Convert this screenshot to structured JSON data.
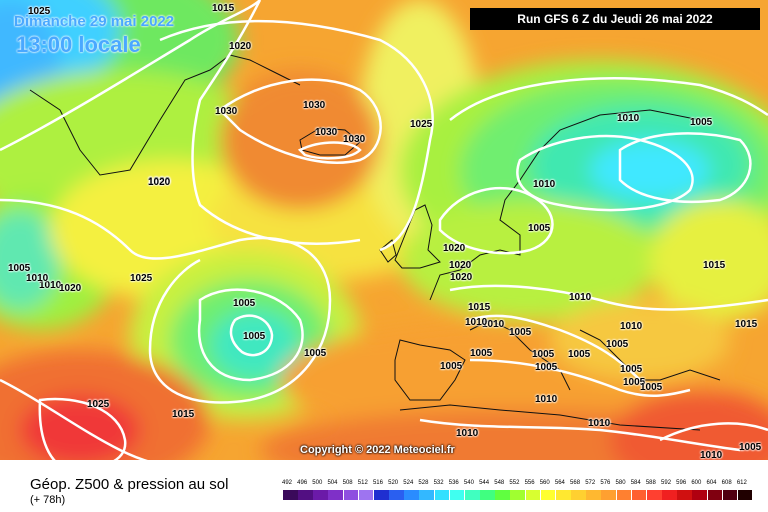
{
  "header": {
    "date": "Dimanche 29 mai 2022",
    "time": "13:00 locale",
    "run": "Run GFS 6 Z du Jeudi 26 mai 2022"
  },
  "copyright": "Copyright © 2022 Meteociel.fr",
  "footer": {
    "product": "Géop. Z500 & pression au sol",
    "lead": "(+ 78h)"
  },
  "pressure_labels": [
    "1015",
    "1025",
    "1020",
    "1020",
    "1030",
    "1030",
    "1030",
    "1030",
    "1025",
    "1010",
    "1005",
    "1020",
    "1010",
    "1005",
    "1025",
    "1005",
    "1005",
    "1010",
    "1020",
    "1020",
    "1020",
    "1010",
    "1020",
    "1005",
    "1005",
    "1010",
    "1015",
    "1015",
    "1010",
    "1005",
    "1005",
    "1005",
    "1005",
    "1005",
    "1005",
    "1005",
    "1005",
    "1010",
    "1010",
    "1005",
    "1005",
    "1025",
    "1015",
    "1010",
    "1010",
    "1010",
    "1005",
    "1010",
    "1015"
  ],
  "scale": {
    "ticks": [
      "492",
      "496",
      "500",
      "504",
      "508",
      "512",
      "516",
      "520",
      "524",
      "528",
      "532",
      "536",
      "540",
      "544",
      "548",
      "552",
      "556",
      "560",
      "564",
      "568",
      "572",
      "576",
      "580",
      "584",
      "588",
      "592",
      "596",
      "600",
      "604",
      "608",
      "612"
    ],
    "colors": [
      "#3a0a5a",
      "#520f82",
      "#6b1aa8",
      "#7f30c8",
      "#8f4fe0",
      "#9e74f0",
      "#1f2fd0",
      "#2a5ff0",
      "#2a8cff",
      "#33b8ff",
      "#33e0ff",
      "#40fff0",
      "#40ffc0",
      "#40ff80",
      "#60ff40",
      "#a0ff30",
      "#d8ff30",
      "#ffff30",
      "#ffe830",
      "#ffd030",
      "#ffb830",
      "#ffa030",
      "#ff8030",
      "#ff6030",
      "#ff4030",
      "#f02020",
      "#d01010",
      "#b00010",
      "#800010",
      "#500010",
      "#200000"
    ]
  },
  "colors": {
    "map_background": "#f6a531",
    "isobar": "#ffffff",
    "coastline": "#111111",
    "header_text": "#4aa8ff"
  }
}
